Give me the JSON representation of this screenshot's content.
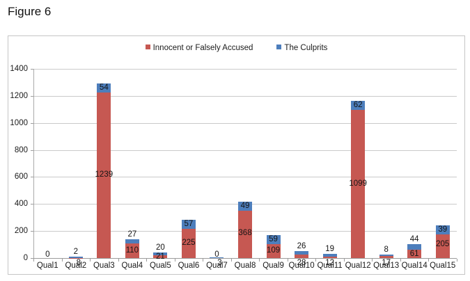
{
  "figure": {
    "title": "Figure 6"
  },
  "chart_data": {
    "type": "bar",
    "stacked": true,
    "title": "Figure 6",
    "categories": [
      "Qual1",
      "Qual2",
      "Qual3",
      "Qual4",
      "Qual5",
      "Qual6",
      "Qual7",
      "Qual8",
      "Qual9",
      "Qual10",
      "Qual11",
      "Qual12",
      "Qual13",
      "Qual14",
      "Qual15"
    ],
    "series": [
      {
        "name": "Innocent or Falsely Accused",
        "color": "#C65852",
        "values": [
          0,
          2,
          1239,
          110,
          21,
          225,
          0,
          368,
          109,
          28,
          12,
          1099,
          17,
          61,
          205
        ],
        "label_positions": [
          "axis",
          "above",
          "center",
          "center",
          "center",
          "center",
          "axis",
          "center",
          "center",
          "below",
          "below",
          "center",
          "below",
          "center",
          "center"
        ]
      },
      {
        "name": "The Culprits",
        "color": "#4D7EBC",
        "values": [
          0,
          8,
          54,
          27,
          20,
          57,
          3,
          49,
          59,
          26,
          19,
          62,
          8,
          44,
          39
        ],
        "label_positions": [
          "hidden",
          "below",
          "chip",
          "above",
          "above",
          "chip",
          "below",
          "chip",
          "chip",
          "above",
          "above",
          "chip",
          "above",
          "above",
          "chip"
        ]
      }
    ],
    "xlabel": "",
    "ylabel": "",
    "ylim": [
      0,
      1400
    ],
    "yticks": [
      0,
      200,
      400,
      600,
      800,
      1000,
      1200,
      1400
    ],
    "grid": true,
    "legend_position": "top-center",
    "colors": {
      "gridline": "#cacaca",
      "axis": "#9c9c9c",
      "box_border": "#c5c5c5",
      "label_text": "#141414"
    }
  }
}
